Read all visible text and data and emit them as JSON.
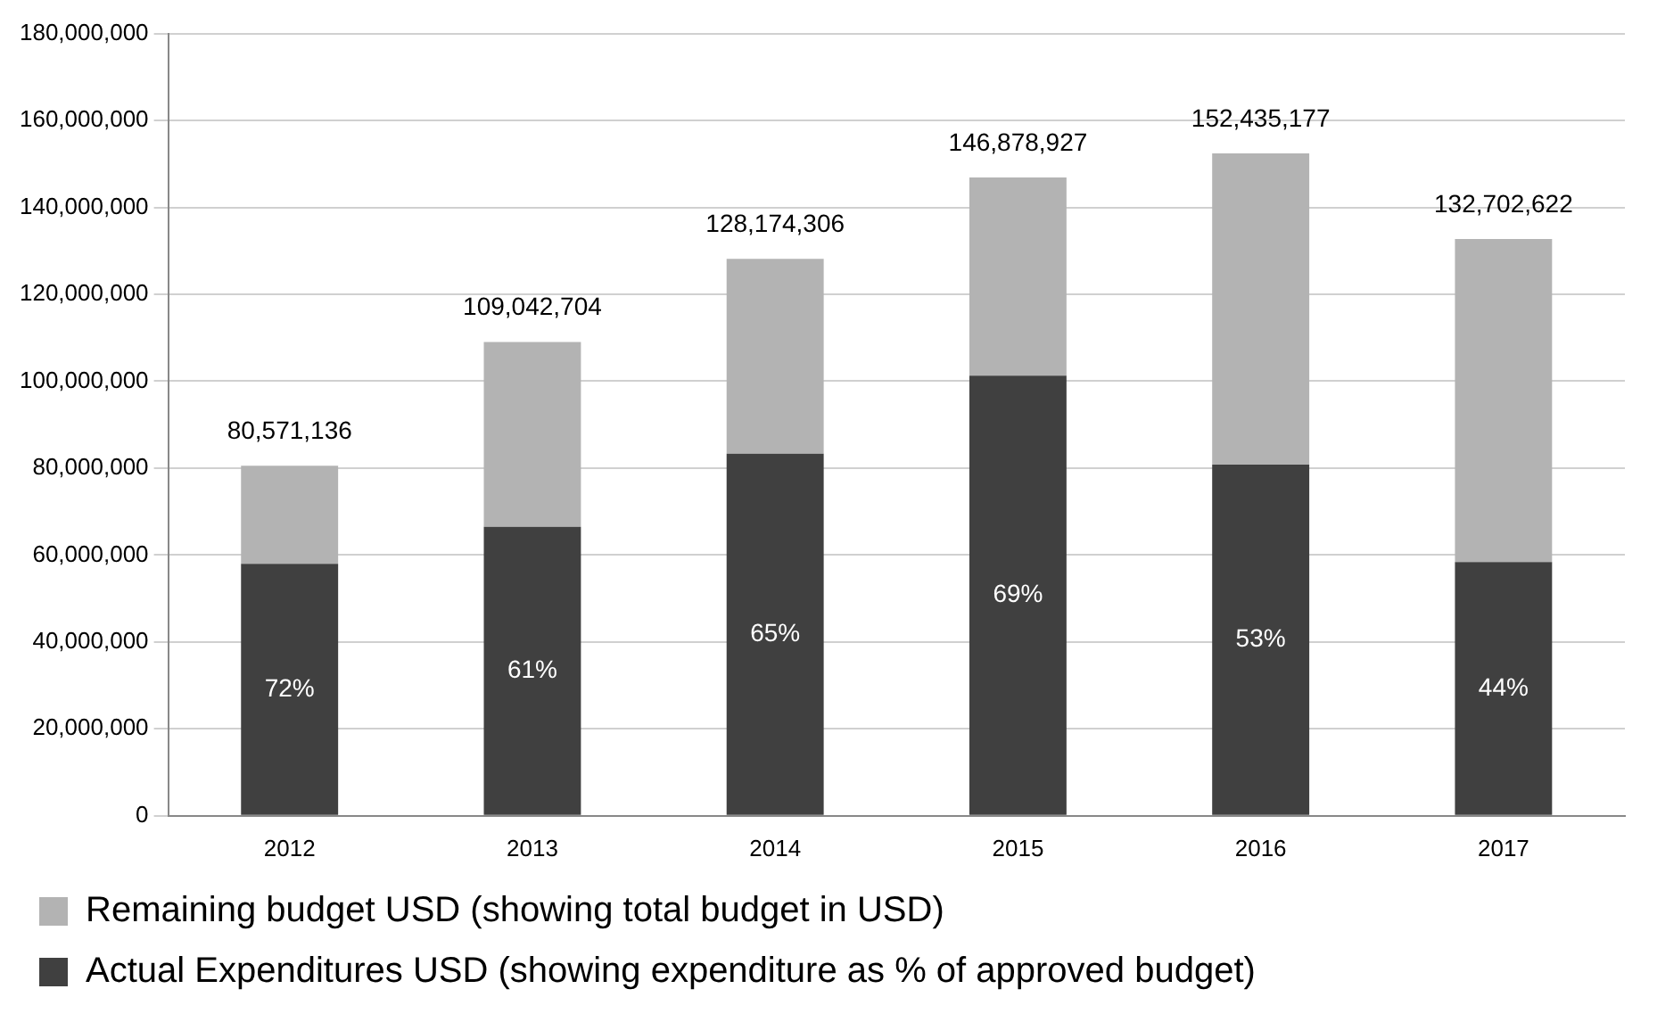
{
  "chart_data": {
    "type": "bar",
    "stacked": true,
    "categories": [
      "2012",
      "2013",
      "2014",
      "2015",
      "2016",
      "2017"
    ],
    "series": [
      {
        "name": "Actual Expenditures USD (showing expenditure as % of approved budget)",
        "color": "#404040",
        "values": [
          58000000,
          66500000,
          83300000,
          101300000,
          80800000,
          58400000
        ]
      },
      {
        "name": "Remaining budget USD (showing total budget in USD)",
        "color": "#b3b3b3",
        "values": [
          22571136,
          42542704,
          44874306,
          45578927,
          71635177,
          74302622
        ]
      }
    ],
    "annotations": [
      "72%",
      "61%",
      "65%",
      "69%",
      "53%",
      "44%"
    ],
    "totals": [
      "80,571,136",
      "109,042,704",
      "128,174,306",
      "146,878,927",
      "152,435,177",
      "132,702,622"
    ],
    "ylim": [
      0,
      180000000
    ],
    "yticks": [
      {
        "value": 0,
        "label": "0"
      },
      {
        "value": 20000000,
        "label": "20,000,000"
      },
      {
        "value": 40000000,
        "label": "40,000,000"
      },
      {
        "value": 60000000,
        "label": "60,000,000"
      },
      {
        "value": 80000000,
        "label": "80,000,000"
      },
      {
        "value": 100000000,
        "label": "100,000,000"
      },
      {
        "value": 120000000,
        "label": "120,000,000"
      },
      {
        "value": 140000000,
        "label": "140,000,000"
      },
      {
        "value": 160000000,
        "label": "160,000,000"
      },
      {
        "value": 180000000,
        "label": "180,000,000"
      }
    ],
    "grid": "y",
    "legend": "bottom"
  }
}
